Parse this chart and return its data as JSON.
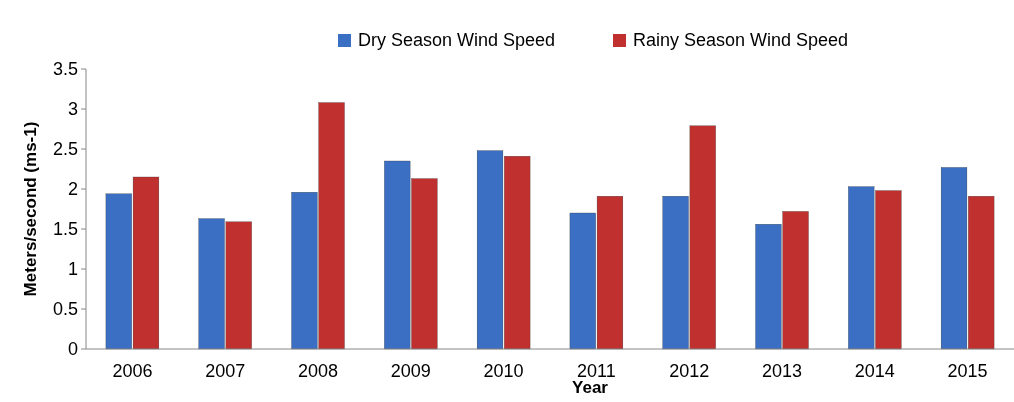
{
  "chart_data": {
    "type": "bar",
    "xlabel": "Year",
    "ylabel": "Meters/second (ms-1)",
    "categories": [
      "2006",
      "2007",
      "2008",
      "2009",
      "2010",
      "2011",
      "2012",
      "2013",
      "2014",
      "2015"
    ],
    "series": [
      {
        "name": "Dry Season Wind Speed",
        "color": "#3a6fc4",
        "values": [
          1.94,
          1.63,
          1.96,
          2.35,
          2.48,
          1.7,
          1.91,
          1.56,
          2.03,
          2.27
        ]
      },
      {
        "name": "Rainy Season Wind Speed",
        "color": "#c0302e",
        "values": [
          2.15,
          1.59,
          3.08,
          2.13,
          2.41,
          1.91,
          2.79,
          1.72,
          1.98,
          1.91
        ]
      }
    ],
    "ylim": [
      0,
      3.5
    ],
    "yticks": [
      0,
      {
        "value": 0.5,
        "label": "0.5"
      },
      1,
      {
        "value": 1.5,
        "label": "1.5"
      },
      2,
      {
        "value": 2.5,
        "label": "2.5"
      },
      3,
      {
        "value": 3.5,
        "label": "3.5"
      }
    ],
    "grid": false,
    "legend": "top"
  }
}
